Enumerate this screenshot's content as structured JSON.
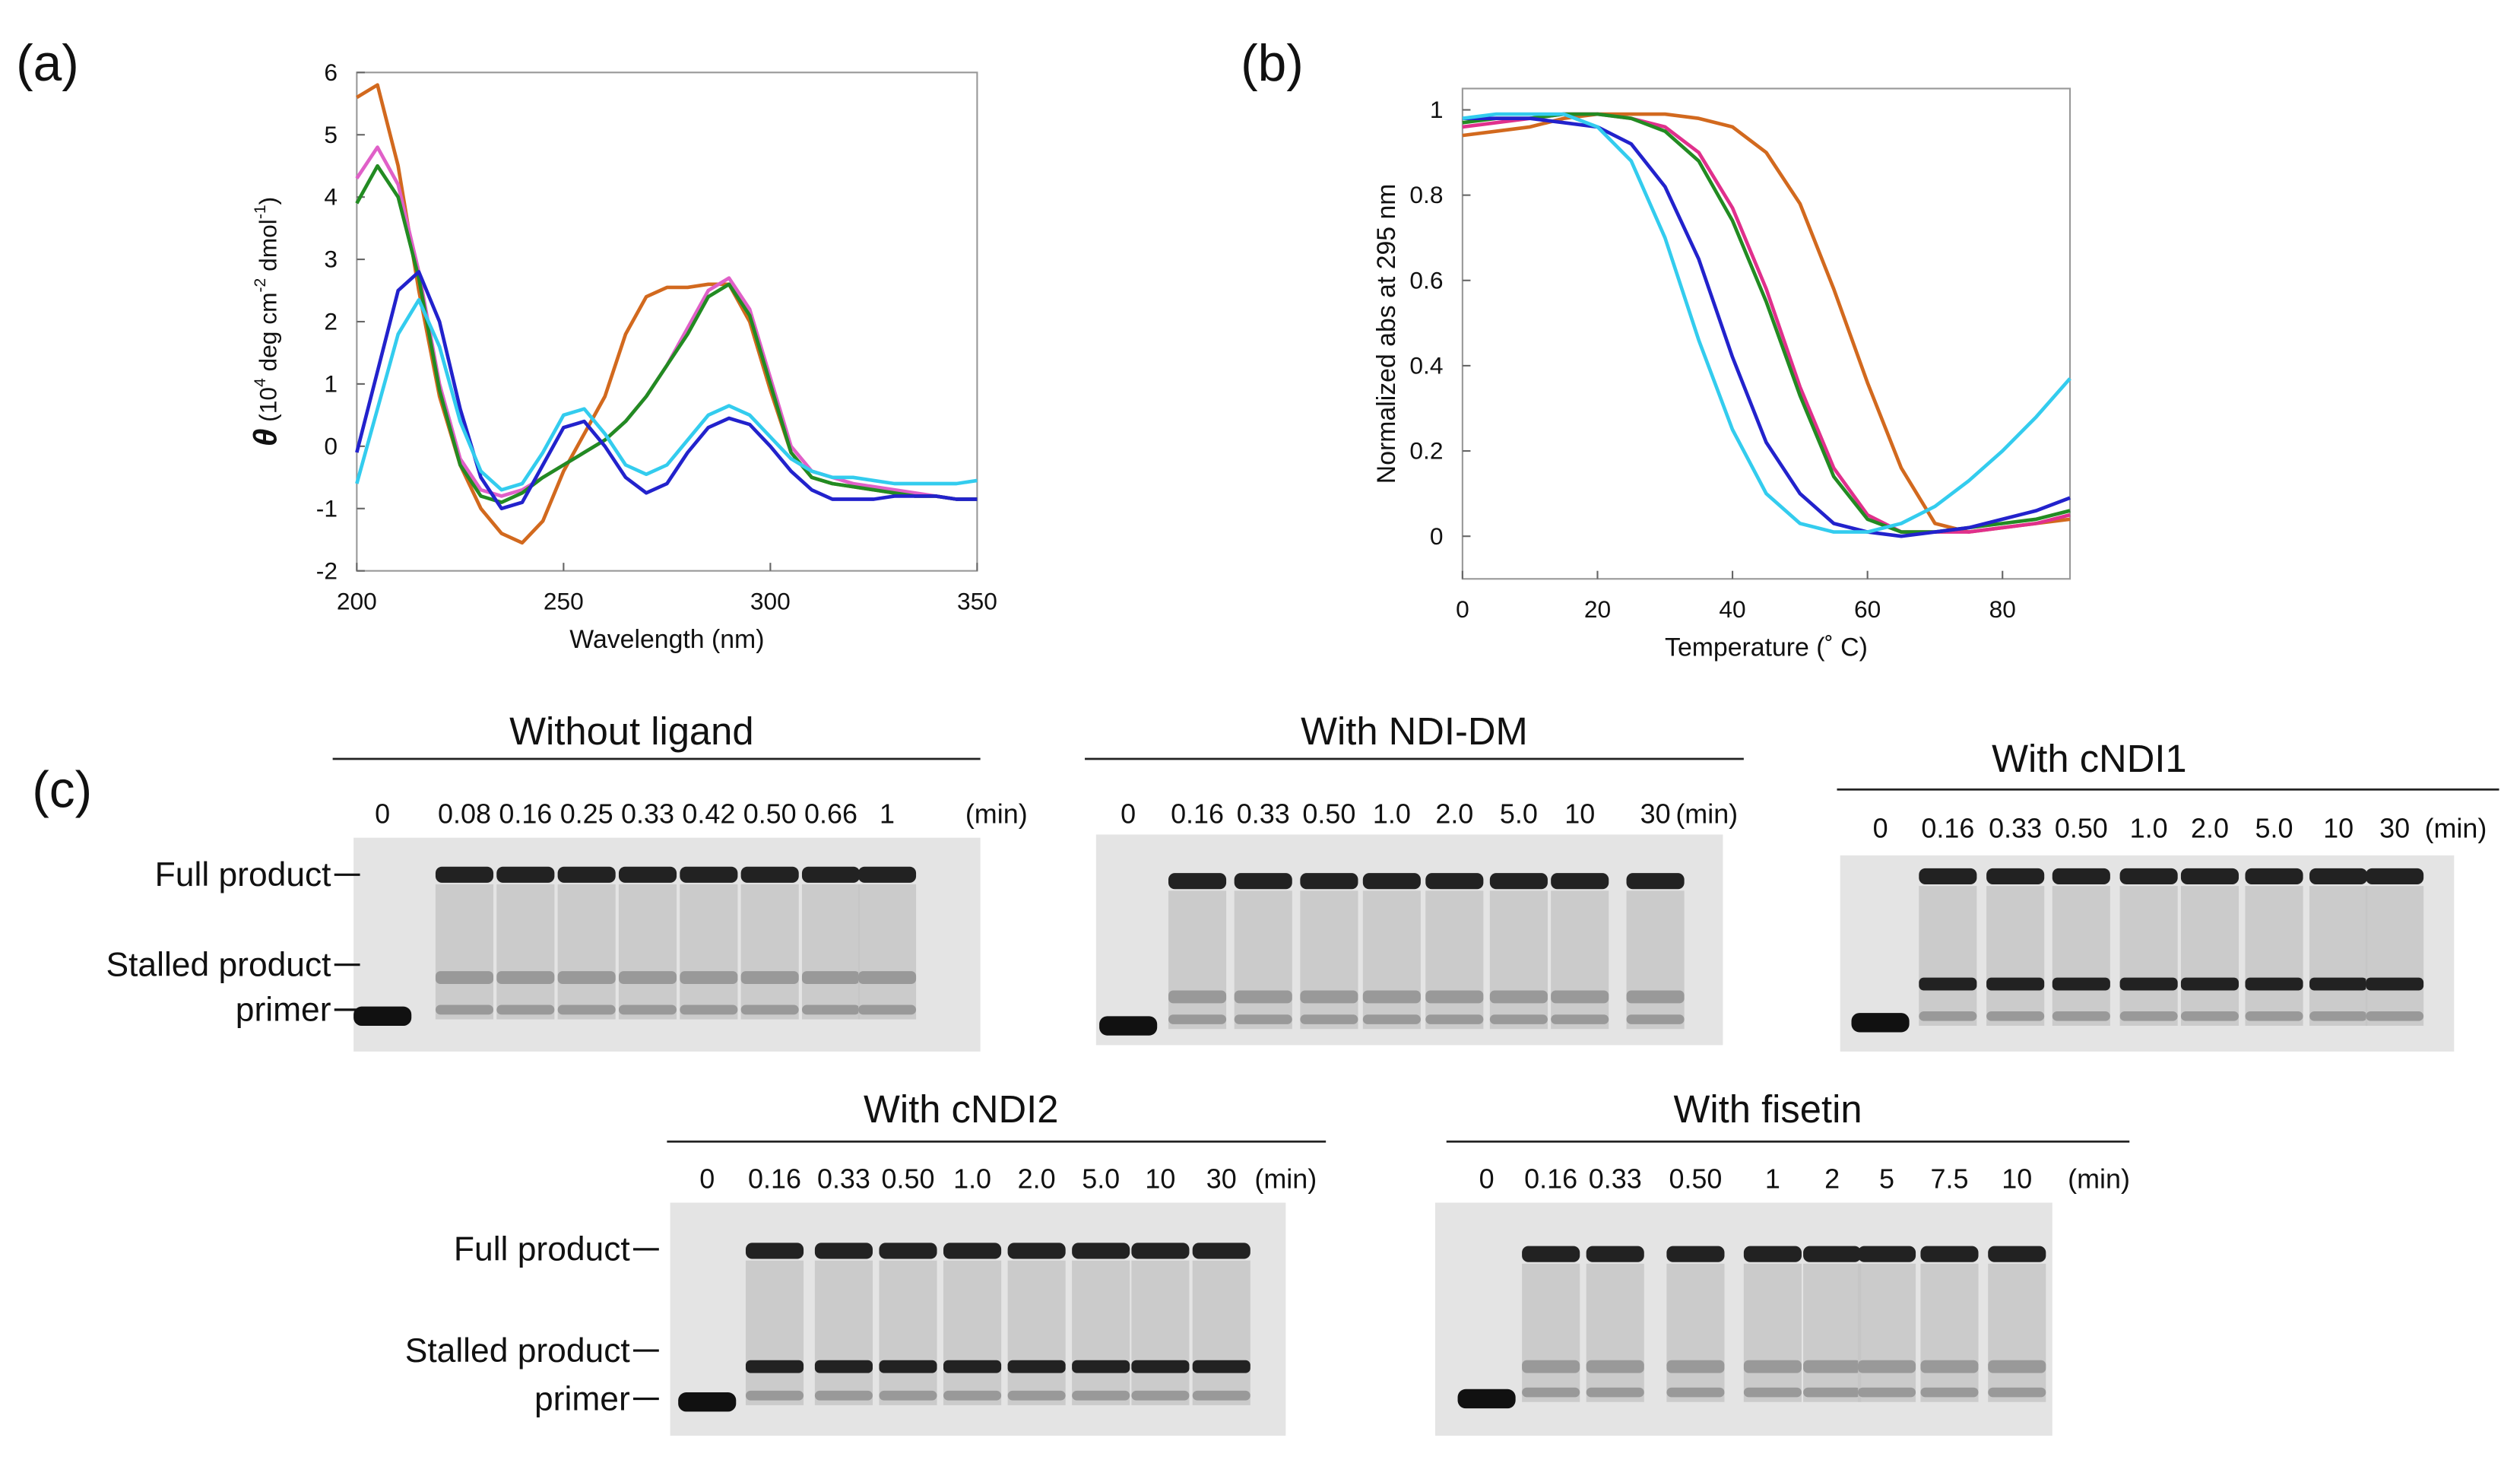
{
  "panel_labels": [
    "(a)",
    "(b)",
    "(c)"
  ],
  "chart_data": [
    {
      "type": "line",
      "xlabel": "Wavelength (nm)",
      "ylabel": {
        "symbol": "θ",
        "parts": [
          " (10",
          "4",
          " deg cm",
          "-2",
          " dmol",
          "-1",
          ")"
        ]
      },
      "xlim": [
        200,
        350
      ],
      "xticks": [
        200,
        250,
        300,
        350
      ],
      "ylim": [
        -2,
        6
      ],
      "yticks": [
        -2,
        -1,
        0,
        1,
        2,
        3,
        4,
        5,
        6
      ],
      "x": [
        200,
        205,
        210,
        215,
        220,
        225,
        230,
        235,
        240,
        245,
        250,
        255,
        260,
        265,
        270,
        275,
        280,
        285,
        290,
        295,
        300,
        305,
        310,
        315,
        320,
        325,
        330,
        335,
        340,
        345,
        350
      ],
      "series": [
        {
          "color": "#d2691e",
          "values": [
            5.6,
            5.8,
            4.5,
            2.5,
            0.8,
            -0.3,
            -1.0,
            -1.4,
            -1.55,
            -1.2,
            -0.4,
            0.2,
            0.8,
            1.8,
            2.4,
            2.55,
            2.55,
            2.6,
            2.6,
            2.0,
            0.9,
            -0.1,
            -0.5,
            -0.6,
            -0.65,
            -0.7,
            -0.75,
            -0.8,
            -0.8,
            -0.85,
            -0.85
          ]
        },
        {
          "color": "#e060c8",
          "values": [
            4.3,
            4.8,
            4.2,
            2.8,
            1.0,
            -0.2,
            -0.7,
            -0.8,
            -0.7,
            -0.5,
            -0.3,
            -0.1,
            0.1,
            0.4,
            0.8,
            1.3,
            1.9,
            2.5,
            2.7,
            2.2,
            1.1,
            0.0,
            -0.4,
            -0.5,
            -0.6,
            -0.65,
            -0.7,
            -0.75,
            -0.8,
            -0.85,
            -0.85
          ]
        },
        {
          "color": "#228b22",
          "values": [
            3.9,
            4.5,
            4.0,
            2.7,
            0.9,
            -0.3,
            -0.8,
            -0.9,
            -0.75,
            -0.5,
            -0.3,
            -0.1,
            0.1,
            0.4,
            0.8,
            1.3,
            1.8,
            2.4,
            2.6,
            2.1,
            1.0,
            -0.1,
            -0.5,
            -0.6,
            -0.65,
            -0.7,
            -0.75,
            -0.8,
            -0.8,
            -0.85,
            -0.85
          ]
        },
        {
          "color": "#2222cc",
          "values": [
            -0.1,
            1.2,
            2.5,
            2.8,
            2.0,
            0.6,
            -0.5,
            -1.0,
            -0.9,
            -0.3,
            0.3,
            0.4,
            0.0,
            -0.5,
            -0.75,
            -0.6,
            -0.1,
            0.3,
            0.45,
            0.35,
            0.0,
            -0.4,
            -0.7,
            -0.85,
            -0.85,
            -0.85,
            -0.8,
            -0.8,
            -0.8,
            -0.85,
            -0.85
          ]
        },
        {
          "color": "#33ccee",
          "values": [
            -0.6,
            0.6,
            1.8,
            2.35,
            1.6,
            0.4,
            -0.4,
            -0.7,
            -0.6,
            -0.1,
            0.5,
            0.6,
            0.2,
            -0.3,
            -0.45,
            -0.3,
            0.1,
            0.5,
            0.65,
            0.5,
            0.15,
            -0.2,
            -0.4,
            -0.5,
            -0.5,
            -0.55,
            -0.6,
            -0.6,
            -0.6,
            -0.6,
            -0.55
          ]
        }
      ]
    },
    {
      "type": "line",
      "xlabel": "Temperature (˚ C)",
      "ylabel": "Normalized abs at 295 nm",
      "xlim": [
        0,
        90
      ],
      "xticks": [
        0,
        20,
        40,
        60,
        80
      ],
      "ylim": [
        -0.1,
        1.05
      ],
      "yticks": [
        0,
        0.2,
        0.4,
        0.6,
        0.8,
        1
      ],
      "x": [
        0,
        5,
        10,
        15,
        20,
        25,
        30,
        35,
        40,
        45,
        50,
        55,
        60,
        65,
        70,
        75,
        80,
        85,
        90
      ],
      "series": [
        {
          "color": "#d2691e",
          "values": [
            0.94,
            0.95,
            0.96,
            0.98,
            0.99,
            0.99,
            0.99,
            0.98,
            0.96,
            0.9,
            0.78,
            0.58,
            0.36,
            0.16,
            0.03,
            0.01,
            0.02,
            0.03,
            0.04
          ]
        },
        {
          "color": "#e0308c",
          "values": [
            0.96,
            0.97,
            0.98,
            0.99,
            0.99,
            0.98,
            0.96,
            0.9,
            0.77,
            0.58,
            0.35,
            0.16,
            0.05,
            0.01,
            0.01,
            0.01,
            0.02,
            0.03,
            0.05
          ]
        },
        {
          "color": "#228b22",
          "values": [
            0.97,
            0.98,
            0.98,
            0.99,
            0.99,
            0.98,
            0.95,
            0.88,
            0.74,
            0.55,
            0.33,
            0.14,
            0.04,
            0.01,
            0.01,
            0.02,
            0.03,
            0.04,
            0.06
          ]
        },
        {
          "color": "#2222cc",
          "values": [
            0.98,
            0.98,
            0.98,
            0.97,
            0.96,
            0.92,
            0.82,
            0.65,
            0.42,
            0.22,
            0.1,
            0.03,
            0.01,
            0.0,
            0.01,
            0.02,
            0.04,
            0.06,
            0.09
          ]
        },
        {
          "color": "#33ccee",
          "values": [
            0.98,
            0.99,
            0.99,
            0.99,
            0.96,
            0.88,
            0.7,
            0.46,
            0.25,
            0.1,
            0.03,
            0.01,
            0.01,
            0.03,
            0.07,
            0.13,
            0.2,
            0.28,
            0.37
          ]
        }
      ]
    }
  ],
  "gels": [
    {
      "title": "Without ligand",
      "lanes": [
        "0",
        "0.08",
        "0.16",
        "0.25",
        "0.33",
        "0.42",
        "0.50",
        "0.66",
        "1"
      ],
      "unit": "(min)",
      "markers": [
        "Full product",
        "Stalled product",
        "primer"
      ]
    },
    {
      "title": "With NDI-DM",
      "lanes": [
        "0",
        "0.16",
        "0.33",
        "0.50",
        "1.0",
        "2.0",
        "5.0",
        "10",
        "30"
      ],
      "unit": "(min)"
    },
    {
      "title": "With cNDI1",
      "lanes": [
        "0",
        "0.16",
        "0.33",
        "0.50",
        "1.0",
        "2.0",
        "5.0",
        "10",
        "30"
      ],
      "unit": "(min)"
    },
    {
      "title": "With cNDI2",
      "lanes": [
        "0",
        "0.16",
        "0.33",
        "0.50",
        "1.0",
        "2.0",
        "5.0",
        "10",
        "30"
      ],
      "unit": "(min)",
      "markers": [
        "Full product",
        "Stalled product",
        "primer"
      ]
    },
    {
      "title": "With fisetin",
      "lanes": [
        "0",
        "0.16",
        "0.33",
        "0.50",
        "1",
        "2",
        "5",
        "7.5",
        "10"
      ],
      "unit": "(min)"
    }
  ]
}
